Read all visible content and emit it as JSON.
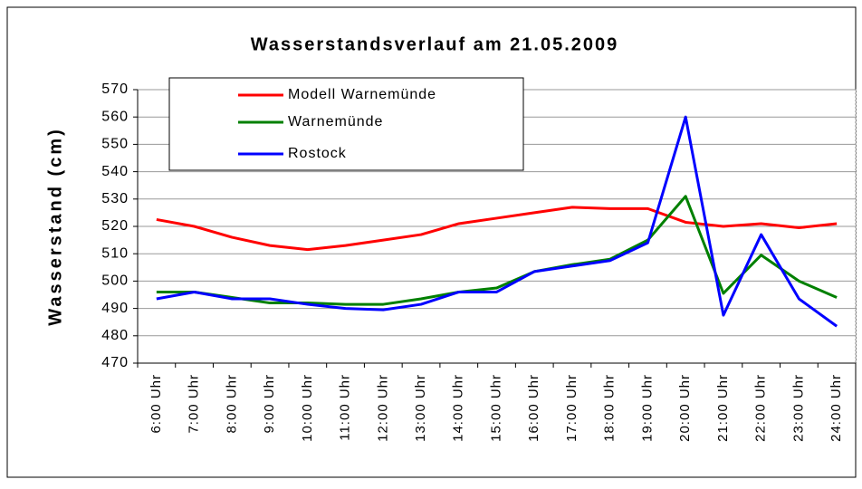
{
  "chart_data": {
    "type": "line",
    "title": "Wasserstandsverlauf am 21.05.2009",
    "y_label": "Wasserstand (cm)",
    "categories": [
      "6:00 Uhr",
      "7:00 Uhr",
      "8:00 Uhr",
      "9:00 Uhr",
      "10:00 Uhr",
      "11:00 Uhr",
      "12:00 Uhr",
      "13:00 Uhr",
      "14:00 Uhr",
      "15:00 Uhr",
      "16:00 Uhr",
      "17:00 Uhr",
      "18:00 Uhr",
      "19:00 Uhr",
      "20:00 Uhr",
      "21:00 Uhr",
      "22:00 Uhr",
      "23:00 Uhr",
      "24:00 Uhr"
    ],
    "series": [
      {
        "name": "Modell Warnemünde",
        "color": "#ff0000",
        "values": [
          522.5,
          520,
          516,
          513,
          511.5,
          513,
          515,
          517,
          521,
          523,
          525,
          527,
          526.5,
          526.5,
          521.5,
          520,
          521,
          519.5,
          521
        ]
      },
      {
        "name": "Warnemünde",
        "color": "#008000",
        "values": [
          496,
          496,
          494,
          492,
          492,
          491.5,
          491.5,
          493.5,
          496,
          497.5,
          503.5,
          506,
          508,
          515,
          531,
          495.5,
          509.5,
          500,
          494
        ]
      },
      {
        "name": "Rostock",
        "color": "#0000ff",
        "values": [
          493.5,
          496,
          493.5,
          493.5,
          491.5,
          490,
          489.5,
          491.5,
          496,
          496,
          503.5,
          505.5,
          507.5,
          514,
          560,
          487.5,
          517,
          493.5,
          483.5
        ]
      }
    ],
    "ylim": [
      470,
      570
    ],
    "yticks": [
      470,
      480,
      490,
      500,
      510,
      520,
      530,
      540,
      550,
      560,
      570
    ],
    "grid": true
  }
}
